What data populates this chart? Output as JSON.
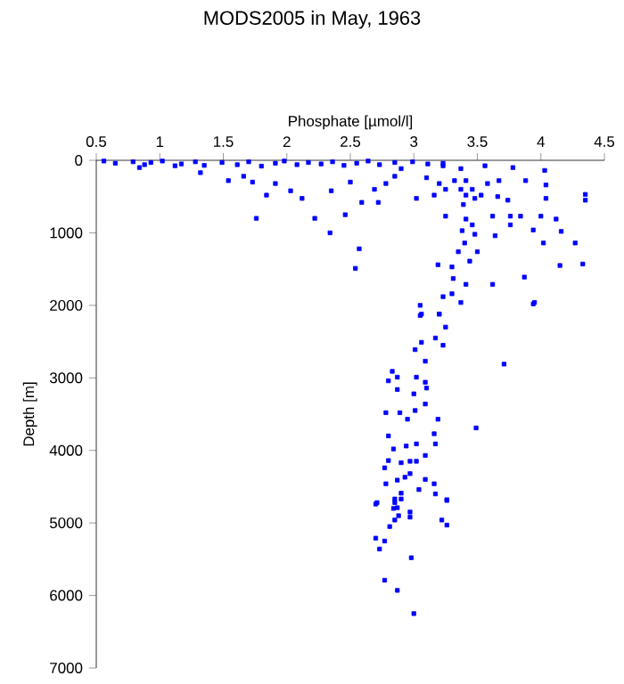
{
  "chart_data": {
    "type": "scatter",
    "title": "MODS2005 in May, 1963",
    "xlabel": "Phosphate [µmol/l]",
    "ylabel": "Depth [m]",
    "xlim": [
      0.5,
      4.5
    ],
    "xticks": [
      0.5,
      1,
      1.5,
      2,
      2.5,
      3,
      3.5,
      4,
      4.5
    ],
    "ylim": [
      7000,
      0
    ],
    "yticks": [
      0,
      1000,
      2000,
      3000,
      4000,
      5000,
      6000,
      7000
    ],
    "marker": "square",
    "series": [
      {
        "color": "#0000ff",
        "x": [
          0.56,
          0.65,
          0.79,
          0.88,
          0.93,
          1.02,
          1.17,
          1.28,
          1.35,
          1.49,
          1.61,
          1.7,
          1.8,
          1.91,
          1.98,
          2.08,
          2.17,
          2.27,
          2.36,
          2.45,
          2.55,
          2.64,
          2.73,
          2.85,
          2.99,
          3.11,
          3.23,
          0.84,
          1.12,
          1.32,
          1.54,
          1.66,
          1.73,
          1.84,
          1.76,
          1.91,
          2.03,
          2.12,
          2.22,
          2.34,
          2.35,
          2.46,
          2.5,
          2.57,
          2.54,
          2.59,
          2.72,
          2.69,
          2.78,
          2.85,
          2.9,
          3.02,
          3.1,
          3.16,
          3.25,
          3.19,
          3.05,
          3.06,
          3.2,
          3.23,
          3.3,
          3.39,
          3.41,
          3.46,
          3.38,
          3.4,
          3.48,
          3.35,
          3.5,
          3.44,
          3.31,
          3.41,
          3.37,
          3.3,
          3.37,
          3.41,
          3.46,
          3.53,
          3.58,
          3.56,
          3.67,
          3.78,
          3.88,
          4.03,
          4.04,
          4.04,
          3.74,
          3.66,
          3.62,
          3.76,
          3.84,
          3.76,
          3.64,
          3.94,
          4.0,
          4.12,
          4.16,
          4.02,
          4.27,
          4.15,
          4.33,
          4.35,
          4.35,
          3.95,
          3.87,
          3.62,
          3.41,
          3.48,
          3.23,
          3.2,
          3.25,
          3.32,
          3.37,
          3.05,
          3.2,
          3.25,
          3.17,
          3.23,
          3.06,
          3.01,
          3.09,
          3.94,
          3.71,
          2.83,
          2.87,
          2.8,
          3.02,
          3.09,
          2.87,
          3.0,
          3.1,
          3.09,
          3.01,
          2.78,
          2.89,
          2.95,
          3.19,
          3.49,
          2.8,
          3.16,
          3.17,
          3.02,
          2.94,
          2.84,
          3.09,
          2.8,
          2.9,
          2.97,
          3.02,
          2.77,
          2.97,
          2.87,
          2.93,
          3.09,
          2.78,
          3.16,
          3.04,
          3.17,
          2.9,
          2.85,
          3.26,
          2.71,
          2.87,
          2.97,
          2.7,
          2.85,
          2.9,
          3.26,
          2.84,
          2.88,
          2.97,
          2.85,
          2.81,
          3.22,
          3.26,
          2.7,
          2.77,
          2.73,
          2.98,
          2.77,
          2.87,
          3.0
        ],
        "values": [
          10,
          40,
          20,
          60,
          30,
          10,
          50,
          20,
          70,
          30,
          60,
          20,
          80,
          40,
          10,
          60,
          30,
          50,
          20,
          70,
          40,
          10,
          60,
          30,
          20,
          50,
          40,
          100,
          75,
          170,
          280,
          220,
          300,
          480,
          800,
          320,
          420,
          525,
          800,
          1000,
          420,
          750,
          300,
          1220,
          1490,
          580,
          580,
          400,
          320,
          220,
          115,
          525,
          240,
          480,
          770,
          1440,
          2000,
          2120,
          2120,
          1880,
          1470,
          610,
          810,
          890,
          970,
          1140,
          1020,
          1260,
          1260,
          1390,
          1630,
          1710,
          1960,
          1840,
          115,
          280,
          400,
          480,
          320,
          75,
          280,
          100,
          280,
          140,
          340,
          525,
          550,
          500,
          770,
          770,
          770,
          890,
          1040,
          960,
          770,
          810,
          980,
          1140,
          1140,
          1450,
          1430,
          470,
          550,
          1960,
          1610,
          1710,
          480,
          525,
          75,
          320,
          400,
          280,
          400,
          2140,
          2120,
          2300,
          2450,
          2550,
          2510,
          2610,
          2770,
          1980,
          2810,
          2910,
          2990,
          3040,
          2990,
          3060,
          3160,
          3220,
          3140,
          3360,
          3450,
          3480,
          3480,
          3570,
          3570,
          3690,
          3800,
          3770,
          3910,
          3910,
          3940,
          3980,
          4070,
          4140,
          4170,
          4150,
          4150,
          4240,
          4320,
          4410,
          4370,
          4400,
          4460,
          4460,
          4540,
          4600,
          4590,
          4670,
          4680,
          4720,
          4790,
          4850,
          4740,
          4720,
          4670,
          4690,
          4800,
          4900,
          4920,
          4960,
          5050,
          4960,
          5030,
          5210,
          5250,
          5360,
          5480,
          5790,
          5930,
          6250
        ]
      }
    ]
  }
}
